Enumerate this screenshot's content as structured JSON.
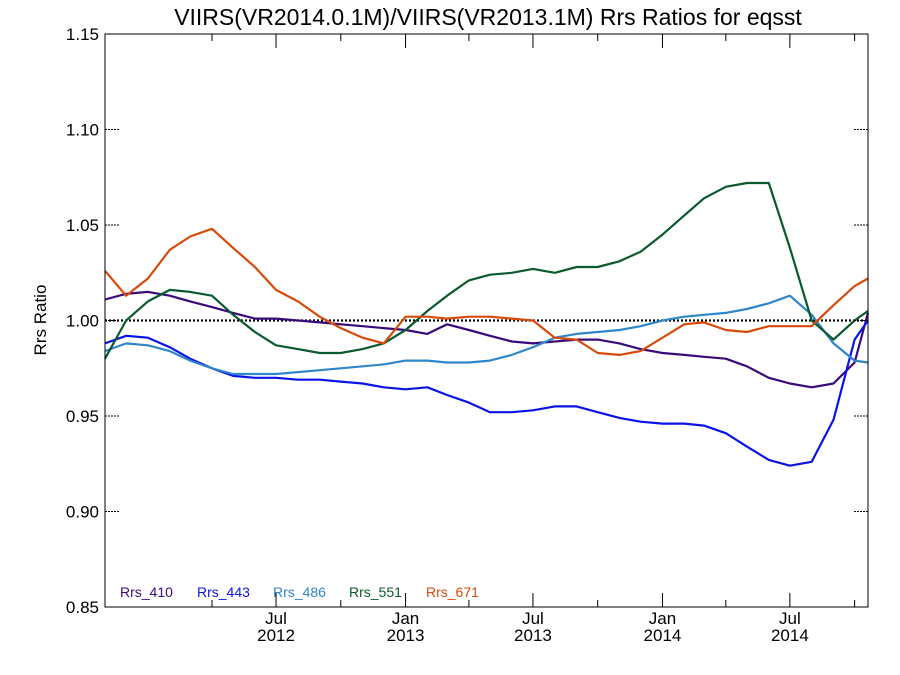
{
  "chart_data": {
    "type": "line",
    "title": "VIIRS(VR2014.0.1M)/VIIRS(VR2013.1M)  Rrs Ratios for eqsst",
    "xlabel": "",
    "ylabel": "Rrs Ratio",
    "ylim": [
      0.85,
      1.15
    ],
    "xlim": [
      "2011-11-01",
      "2014-10-20"
    ],
    "yticks": [
      "0.85",
      "0.90",
      "0.95",
      "1.00",
      "1.05",
      "1.10",
      "1.15"
    ],
    "xticks": [
      {
        "date": "2012-07-01",
        "lines": [
          "Jul",
          "2012"
        ]
      },
      {
        "date": "2013-01-01",
        "lines": [
          "Jan",
          "2013"
        ]
      },
      {
        "date": "2013-07-01",
        "lines": [
          "Jul",
          "2013"
        ]
      },
      {
        "date": "2014-01-01",
        "lines": [
          "Jan",
          "2014"
        ]
      },
      {
        "date": "2014-07-01",
        "lines": [
          "Jul",
          "2014"
        ]
      }
    ],
    "minor_ticks": [
      "2012-04-01",
      "2012-10-01",
      "2013-04-01",
      "2013-10-01",
      "2014-04-01",
      "2014-10-01"
    ],
    "reference_line": 1.0,
    "grid": false,
    "legend_position": "bottom-left",
    "dates": [
      "2011-11-01",
      "2011-12-01",
      "2012-01-01",
      "2012-02-01",
      "2012-03-01",
      "2012-04-01",
      "2012-05-01",
      "2012-06-01",
      "2012-07-01",
      "2012-08-01",
      "2012-09-01",
      "2012-10-01",
      "2012-11-01",
      "2012-12-01",
      "2013-01-01",
      "2013-02-01",
      "2013-03-01",
      "2013-04-01",
      "2013-05-01",
      "2013-06-01",
      "2013-07-01",
      "2013-08-01",
      "2013-09-01",
      "2013-10-01",
      "2013-11-01",
      "2013-12-01",
      "2014-01-01",
      "2014-02-01",
      "2014-03-01",
      "2014-04-01",
      "2014-05-01",
      "2014-06-01",
      "2014-07-01",
      "2014-08-01",
      "2014-09-01",
      "2014-10-01",
      "2014-10-20"
    ],
    "series": [
      {
        "name": "Rrs_410",
        "color": "#3a0a7a",
        "values": [
          1.011,
          1.014,
          1.015,
          1.013,
          1.01,
          1.007,
          1.004,
          1.001,
          1.001,
          1.0,
          0.999,
          0.998,
          0.997,
          0.996,
          0.995,
          0.993,
          0.998,
          0.995,
          0.992,
          0.989,
          0.988,
          0.989,
          0.99,
          0.99,
          0.988,
          0.985,
          0.983,
          0.982,
          0.981,
          0.98,
          0.976,
          0.97,
          0.967,
          0.965,
          0.967,
          0.978,
          1.004
        ]
      },
      {
        "name": "Rrs_443",
        "color": "#0a14e6",
        "values": [
          0.988,
          0.992,
          0.991,
          0.986,
          0.98,
          0.975,
          0.971,
          0.97,
          0.97,
          0.969,
          0.969,
          0.968,
          0.967,
          0.965,
          0.964,
          0.965,
          0.961,
          0.957,
          0.952,
          0.952,
          0.953,
          0.955,
          0.955,
          0.952,
          0.949,
          0.947,
          0.946,
          0.946,
          0.945,
          0.941,
          0.934,
          0.927,
          0.924,
          0.926,
          0.948,
          0.99,
          1.0
        ]
      },
      {
        "name": "Rrs_486",
        "color": "#2f86c8",
        "values": [
          0.984,
          0.988,
          0.987,
          0.984,
          0.979,
          0.975,
          0.972,
          0.972,
          0.972,
          0.973,
          0.974,
          0.975,
          0.976,
          0.977,
          0.979,
          0.979,
          0.978,
          0.978,
          0.979,
          0.982,
          0.986,
          0.991,
          0.993,
          0.994,
          0.995,
          0.997,
          1.0,
          1.002,
          1.003,
          1.004,
          1.006,
          1.009,
          1.013,
          1.003,
          0.988,
          0.979,
          0.978
        ]
      },
      {
        "name": "Rrs_551",
        "color": "#0a5a2e",
        "values": [
          0.98,
          1.0,
          1.01,
          1.016,
          1.015,
          1.013,
          1.003,
          0.994,
          0.987,
          0.985,
          0.983,
          0.983,
          0.985,
          0.988,
          0.995,
          1.005,
          1.013,
          1.021,
          1.024,
          1.025,
          1.027,
          1.025,
          1.028,
          1.028,
          1.031,
          1.036,
          1.045,
          1.055,
          1.064,
          1.07,
          1.072,
          1.072,
          1.038,
          1.0,
          0.99,
          1.0,
          1.005
        ]
      },
      {
        "name": "Rrs_671",
        "color": "#d84a0a",
        "values": [
          1.026,
          1.013,
          1.022,
          1.037,
          1.044,
          1.048,
          1.038,
          1.028,
          1.016,
          1.01,
          1.002,
          0.996,
          0.991,
          0.988,
          1.002,
          1.002,
          1.001,
          1.002,
          1.002,
          1.001,
          1.0,
          0.991,
          0.99,
          0.983,
          0.982,
          0.984,
          0.991,
          0.998,
          0.999,
          0.995,
          0.994,
          0.997,
          0.997,
          0.997,
          1.008,
          1.018,
          1.022
        ]
      }
    ]
  }
}
